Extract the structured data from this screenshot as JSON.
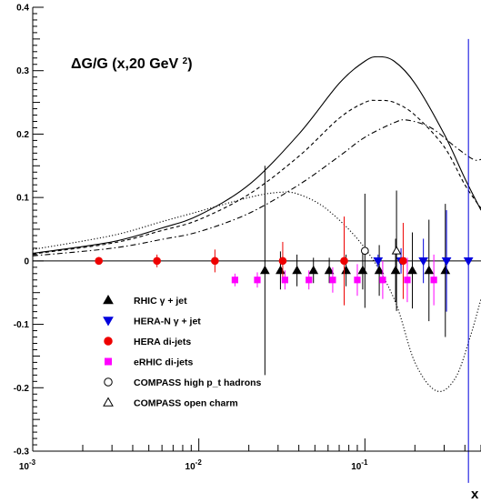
{
  "chart_data": {
    "type": "scatter",
    "title": "ΔG/G (x,20 GeV²)",
    "xlabel": "x",
    "ylabel": "",
    "x_scale": "log",
    "xlim": [
      0.001,
      0.5
    ],
    "ylim": [
      -0.3,
      0.4
    ],
    "grid": false,
    "legend_position": "lower-left",
    "x_tick_labels": [
      {
        "value": 0.001,
        "base": "10",
        "exp": "-3"
      },
      {
        "value": 0.01,
        "base": "10",
        "exp": "-2"
      },
      {
        "value": 0.1,
        "base": "10",
        "exp": "-1"
      }
    ],
    "y_ticks": [
      {
        "value": -0.3,
        "label": "-0.3"
      },
      {
        "value": -0.2,
        "label": "-0.2"
      },
      {
        "value": -0.1,
        "label": "-0.1"
      },
      {
        "value": 0,
        "label": "0"
      },
      {
        "value": 0.1,
        "label": "0.1"
      },
      {
        "value": 0.2,
        "label": "0.2"
      },
      {
        "value": 0.3,
        "label": "0.3"
      },
      {
        "value": 0.4,
        "label": "0.4"
      }
    ],
    "curves": [
      {
        "style": "solid",
        "color": "#000000",
        "points": [
          [
            0.001,
            0.012
          ],
          [
            0.003,
            0.03
          ],
          [
            0.006,
            0.052
          ],
          [
            0.01,
            0.072
          ],
          [
            0.02,
            0.12
          ],
          [
            0.04,
            0.2
          ],
          [
            0.07,
            0.28
          ],
          [
            0.1,
            0.315
          ],
          [
            0.12,
            0.322
          ],
          [
            0.15,
            0.315
          ],
          [
            0.2,
            0.28
          ],
          [
            0.3,
            0.2
          ],
          [
            0.4,
            0.13
          ],
          [
            0.5,
            0.08
          ]
        ]
      },
      {
        "style": "dashed",
        "color": "#000000",
        "points": [
          [
            0.001,
            0.011
          ],
          [
            0.003,
            0.028
          ],
          [
            0.006,
            0.048
          ],
          [
            0.01,
            0.065
          ],
          [
            0.02,
            0.105
          ],
          [
            0.04,
            0.165
          ],
          [
            0.07,
            0.225
          ],
          [
            0.1,
            0.25
          ],
          [
            0.12,
            0.253
          ],
          [
            0.15,
            0.25
          ],
          [
            0.2,
            0.23
          ],
          [
            0.3,
            0.18
          ],
          [
            0.4,
            0.12
          ],
          [
            0.5,
            0.083
          ]
        ]
      },
      {
        "style": "dashdot",
        "color": "#000000",
        "points": [
          [
            0.001,
            0.008
          ],
          [
            0.003,
            0.02
          ],
          [
            0.006,
            0.034
          ],
          [
            0.01,
            0.046
          ],
          [
            0.02,
            0.075
          ],
          [
            0.04,
            0.12
          ],
          [
            0.07,
            0.165
          ],
          [
            0.1,
            0.195
          ],
          [
            0.15,
            0.218
          ],
          [
            0.18,
            0.222
          ],
          [
            0.25,
            0.21
          ],
          [
            0.35,
            0.18
          ],
          [
            0.45,
            0.16
          ],
          [
            0.5,
            0.16
          ]
        ]
      },
      {
        "style": "dotted",
        "color": "#000000",
        "points": [
          [
            0.001,
            0.018
          ],
          [
            0.003,
            0.04
          ],
          [
            0.006,
            0.062
          ],
          [
            0.01,
            0.078
          ],
          [
            0.02,
            0.1
          ],
          [
            0.03,
            0.108
          ],
          [
            0.04,
            0.105
          ],
          [
            0.06,
            0.08
          ],
          [
            0.1,
            0.02
          ],
          [
            0.15,
            -0.06
          ],
          [
            0.2,
            -0.16
          ],
          [
            0.27,
            -0.205
          ],
          [
            0.35,
            -0.185
          ],
          [
            0.43,
            -0.12
          ],
          [
            0.5,
            -0.06
          ]
        ]
      }
    ],
    "series": [
      {
        "name": "RHIC γ + jet",
        "marker": "triangle-up",
        "color": "#000000",
        "points": [
          {
            "x": 0.025,
            "y": -0.015,
            "err": 0.165
          },
          {
            "x": 0.031,
            "y": -0.015,
            "err": 0.03
          },
          {
            "x": 0.039,
            "y": -0.015,
            "err": 0.025
          },
          {
            "x": 0.049,
            "y": -0.015,
            "err": 0.02
          },
          {
            "x": 0.061,
            "y": -0.015,
            "err": 0.02
          },
          {
            "x": 0.077,
            "y": -0.015,
            "err": 0.025
          },
          {
            "x": 0.097,
            "y": -0.015,
            "err": 0.03
          },
          {
            "x": 0.122,
            "y": -0.015,
            "err": 0.04
          },
          {
            "x": 0.153,
            "y": -0.015,
            "err": 0.05
          },
          {
            "x": 0.193,
            "y": -0.015,
            "err": 0.06
          },
          {
            "x": 0.243,
            "y": -0.015,
            "err": 0.08
          },
          {
            "x": 0.305,
            "y": -0.015,
            "err": 0.105
          }
        ]
      },
      {
        "name": "HERA-N γ + jet",
        "marker": "triangle-down",
        "color": "#0000dd",
        "points": [
          {
            "x": 0.12,
            "y": 0.0,
            "err": 0.01
          },
          {
            "x": 0.165,
            "y": 0.0,
            "err": 0.02
          },
          {
            "x": 0.225,
            "y": 0.0,
            "err": 0.035
          },
          {
            "x": 0.31,
            "y": 0.0,
            "err": 0.08
          },
          {
            "x": 0.42,
            "y": 0.0,
            "err": 0.35
          }
        ]
      },
      {
        "name": "HERA di-jets",
        "marker": "circle",
        "color": "#ee0000",
        "points": [
          {
            "x": 0.0025,
            "y": 0.0,
            "err": 0.006
          },
          {
            "x": 0.0056,
            "y": 0.0,
            "err": 0.01
          },
          {
            "x": 0.0125,
            "y": 0.0,
            "err": 0.018
          },
          {
            "x": 0.032,
            "y": 0.0,
            "err": 0.03
          },
          {
            "x": 0.075,
            "y": 0.0,
            "err": 0.07
          },
          {
            "x": 0.17,
            "y": 0.0,
            "err": 0.06
          }
        ]
      },
      {
        "name": "eRHIC di-jets",
        "marker": "square",
        "color": "#ff00ff",
        "points": [
          {
            "x": 0.0165,
            "y": -0.03,
            "err": 0.01
          },
          {
            "x": 0.0225,
            "y": -0.03,
            "err": 0.012
          },
          {
            "x": 0.033,
            "y": -0.03,
            "err": 0.015
          },
          {
            "x": 0.046,
            "y": -0.03,
            "err": 0.015
          },
          {
            "x": 0.064,
            "y": -0.03,
            "err": 0.02
          },
          {
            "x": 0.09,
            "y": -0.03,
            "err": 0.025
          },
          {
            "x": 0.128,
            "y": -0.03,
            "err": 0.03
          },
          {
            "x": 0.18,
            "y": -0.03,
            "err": 0.035
          },
          {
            "x": 0.26,
            "y": -0.03,
            "err": 0.04
          }
        ]
      },
      {
        "name": "COMPASS high p_t hadrons",
        "marker": "open-circle",
        "color": "#000000",
        "points": [
          {
            "x": 0.1,
            "y": 0.016,
            "err": 0.09
          }
        ]
      },
      {
        "name": "COMPASS open charm",
        "marker": "open-triangle",
        "color": "#000000",
        "points": [
          {
            "x": 0.155,
            "y": 0.016,
            "err": 0.095
          }
        ]
      }
    ]
  }
}
